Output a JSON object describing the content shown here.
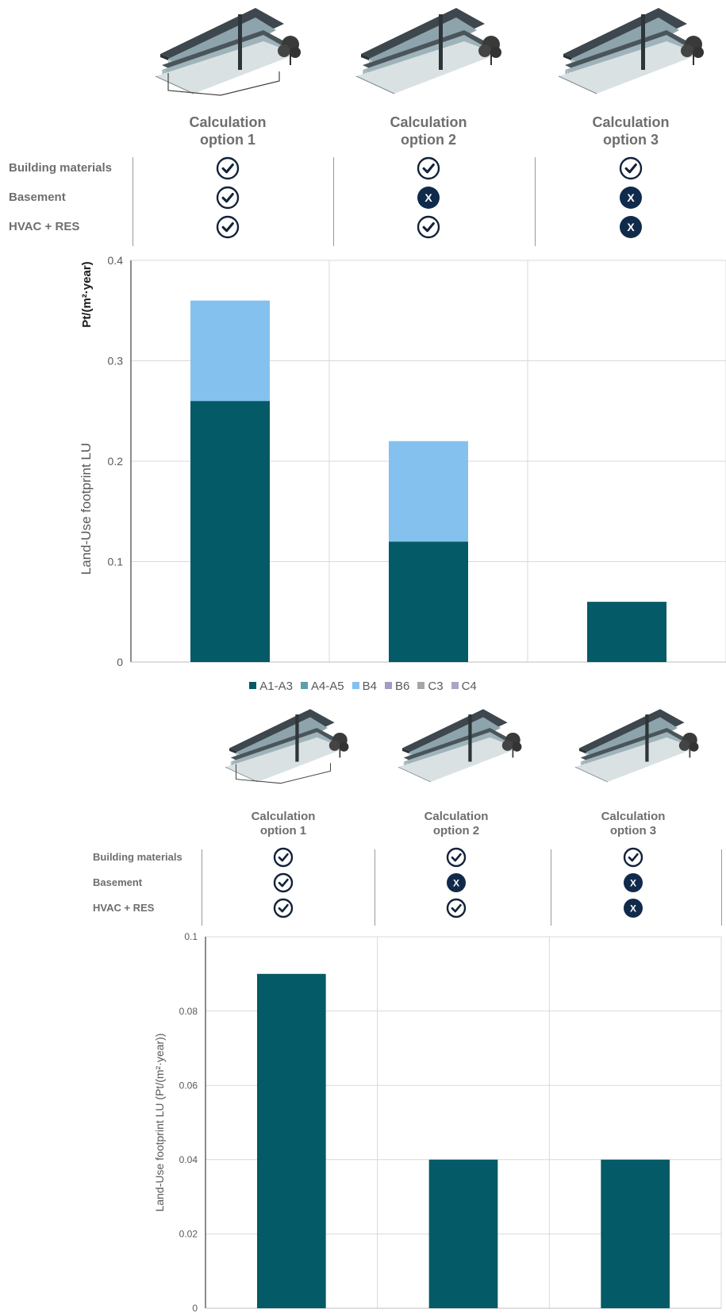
{
  "colors": {
    "a1_a3": "#045a66",
    "a4_a5": "#5b9faa",
    "b4": "#85c1ee",
    "b6": "#9e9ec4",
    "c3": "#a6a6a6",
    "c4": "#a8a6ca",
    "badge_dark": "#0f2a4a",
    "text": "#6e6e6e"
  },
  "panel1": {
    "options": [
      {
        "title_line1": "Calculation",
        "title_line2": "option 1"
      },
      {
        "title_line1": "Calculation",
        "title_line2": "option 2"
      },
      {
        "title_line1": "Calculation",
        "title_line2": "option 3"
      }
    ],
    "rows": [
      {
        "label": "Building materials",
        "status": [
          "check",
          "check",
          "check"
        ]
      },
      {
        "label": "Basement",
        "status": [
          "check",
          "cross",
          "cross"
        ]
      },
      {
        "label": "HVAC + RES",
        "status": [
          "check",
          "check",
          "cross"
        ]
      }
    ],
    "cross_symbol": "X"
  },
  "panel2": {
    "options": [
      {
        "title_line1": "Calculation",
        "title_line2": "option 1"
      },
      {
        "title_line1": "Calculation",
        "title_line2": "option 2"
      },
      {
        "title_line1": "Calculation",
        "title_line2": "option 3"
      }
    ],
    "rows": [
      {
        "label": "Building materials",
        "status": [
          "check",
          "check",
          "check"
        ]
      },
      {
        "label": "Basement",
        "status": [
          "check",
          "cross",
          "cross"
        ]
      },
      {
        "label": "HVAC + RES",
        "status": [
          "check",
          "check",
          "cross"
        ]
      }
    ],
    "cross_symbol": "X"
  },
  "chart_data": [
    {
      "type": "bar",
      "stacked": true,
      "categories": [
        "Calculation option 1",
        "Calculation option 2",
        "Calculation option 3"
      ],
      "series": [
        {
          "name": "A1-A3",
          "values": [
            0.26,
            0.12,
            0.06
          ]
        },
        {
          "name": "A4-A5",
          "values": [
            0,
            0,
            0
          ]
        },
        {
          "name": "B4",
          "values": [
            0.1,
            0.1,
            0
          ]
        },
        {
          "name": "B6",
          "values": [
            0,
            0,
            0
          ]
        },
        {
          "name": "C3",
          "values": [
            0,
            0,
            0
          ]
        },
        {
          "name": "C4",
          "values": [
            0,
            0,
            0
          ]
        }
      ],
      "ylabel": "Land-Use footprint LU",
      "ylabel_unit": "Pt/(m²·year)",
      "ylim": [
        0,
        0.4
      ],
      "yticks": [
        "0",
        "0.1",
        "0.2",
        "0.3",
        "0.4"
      ],
      "ytick_values": [
        0,
        0.1,
        0.2,
        0.3,
        0.4
      ],
      "grid": true,
      "legend_position": "bottom"
    },
    {
      "type": "bar",
      "stacked": false,
      "categories": [
        "Calculation option 1",
        "Calculation option 2",
        "Calculation option 3"
      ],
      "values": [
        0.09,
        0.04,
        0.04
      ],
      "ylabel": "Land-Use footprint LU (Pt/(m²·year))",
      "ylim": [
        0,
        0.1
      ],
      "yticks": [
        "0",
        "0.02",
        "0.04",
        "0.06",
        "0.08",
        "0.1"
      ],
      "ytick_values": [
        0,
        0.02,
        0.04,
        0.06,
        0.08,
        0.1
      ],
      "grid": true
    }
  ]
}
